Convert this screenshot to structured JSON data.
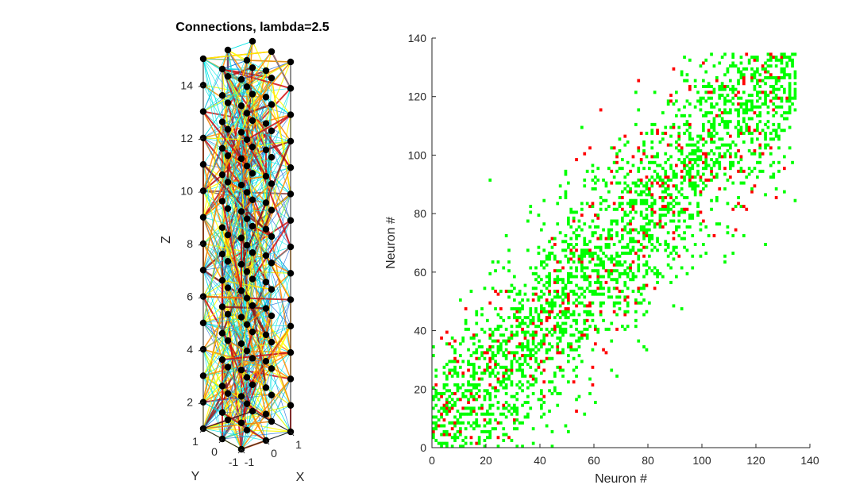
{
  "chart_data": [
    {
      "type": "scatter",
      "subtype": "3d-network",
      "title": "Connections, lambda=2.5",
      "xlabel": "X",
      "ylabel": "Y",
      "zlabel": "Z",
      "x_ticks": [
        "-1",
        "0",
        "1"
      ],
      "y_ticks": [
        "-1",
        "0",
        "1"
      ],
      "z_ticks": [
        "2",
        "4",
        "6",
        "8",
        "10",
        "12",
        "14"
      ],
      "xlim": [
        -1,
        1
      ],
      "ylim": [
        -1,
        1
      ],
      "zlim": [
        1,
        15
      ],
      "grid": false,
      "nodes": {
        "x": [
          -1,
          0,
          1
        ],
        "y": [
          -1,
          0,
          1
        ],
        "z_from": 1,
        "z_to": 15,
        "count": 135,
        "color": "#000000"
      },
      "edge_colors": [
        "#00e5e5",
        "#1e6fd9",
        "#ffff00",
        "#ff8c00",
        "#d11010",
        "#8b1a1a"
      ]
    },
    {
      "type": "heatmap",
      "subtype": "connectivity-matrix",
      "xlabel": "Neuron #",
      "ylabel": "Neuron #",
      "xlim": [
        0,
        140
      ],
      "ylim": [
        0,
        140
      ],
      "x_ticks": [
        "0",
        "20",
        "40",
        "60",
        "80",
        "100",
        "120",
        "140"
      ],
      "y_ticks": [
        "0",
        "20",
        "40",
        "60",
        "80",
        "100",
        "120",
        "140"
      ],
      "matrix_size": 135,
      "band_halfwidth": 28,
      "connection_probability": 0.42,
      "colors": {
        "excitatory": "#00ff00",
        "inhibitory": "#ff0000"
      },
      "inhibitory_fraction": 0.14,
      "grid": false
    }
  ]
}
